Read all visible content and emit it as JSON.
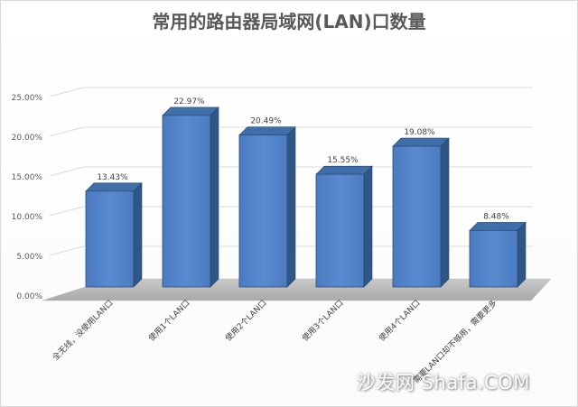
{
  "chart_data": {
    "type": "bar",
    "title": "常用的路由器局域网(LAN)口数量",
    "categories": [
      "全无线，没使用LAN口",
      "使用1个LAN口",
      "使用2个LAN口",
      "使用3个LAN口",
      "使用4个LAN口",
      "需要LAN口却不够用，需要更多"
    ],
    "values": [
      13.43,
      22.97,
      20.49,
      15.55,
      19.08,
      8.48
    ],
    "data_labels": [
      "13.43%",
      "22.97%",
      "20.49%",
      "15.55%",
      "19.08%",
      "8.48%"
    ],
    "y_ticks": [
      "0.00%",
      "5.00%",
      "10.00%",
      "15.00%",
      "20.00%",
      "25.00%"
    ],
    "ylim": [
      0,
      25
    ],
    "grid": true,
    "legend": "none",
    "bar_color": "#4f81bd",
    "xlabel": "",
    "ylabel": ""
  },
  "watermark": "沙发网 Shafa.COM"
}
